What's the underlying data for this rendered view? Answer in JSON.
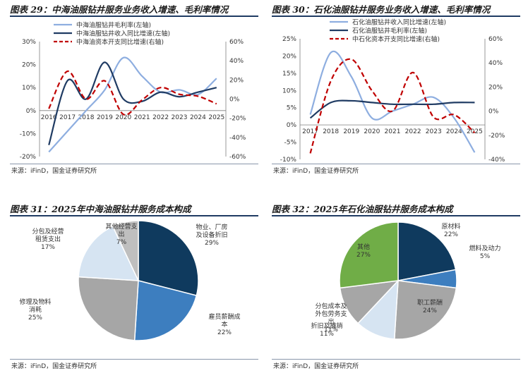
{
  "colors": {
    "light_blue": "#8eaee0",
    "dark_navy": "#1f3b63",
    "red": "#c00000",
    "pie_dark": "#0f3a5e",
    "pie_mid": "#3d7ebf",
    "pie_gray": "#a6a6a6",
    "pie_light": "#d6e4f2",
    "pie_green": "#70ad47",
    "axis": "#7f7f7f"
  },
  "fig29": {
    "title": "图表 29：中海油服钻井服务业务收入增速、毛利率情况",
    "source": "来源：iFinD，国金证券研究所",
    "chart_data": {
      "type": "line",
      "x": [
        "2016",
        "2017",
        "2018",
        "2019",
        "2020",
        "2021",
        "2022",
        "2023",
        "2024",
        "2025"
      ],
      "x_tick_labels": [
        "2016",
        "2017",
        "2018",
        "2019",
        "2020",
        "2021",
        "2022",
        "2023",
        "2024",
        "2025"
      ],
      "left_ylim": [
        -20,
        30
      ],
      "left_ticks": [
        "30%",
        "20%",
        "10%",
        "0%",
        "-10%",
        "-20%"
      ],
      "left_tick_values": [
        30,
        20,
        10,
        0,
        -10,
        -20
      ],
      "right_ylim": [
        -60,
        60
      ],
      "right_ticks": [
        "60%",
        "40%",
        "20%",
        "0%",
        "-20%",
        "-40%",
        "-60%"
      ],
      "right_tick_values": [
        60,
        40,
        20,
        0,
        -20,
        -40,
        -60
      ],
      "series": [
        {
          "name": "中海油服钻井毛利率(左轴)",
          "axis": "left",
          "style": "solid",
          "color": "#8eaee0",
          "values": [
            -18,
            -9,
            0,
            9,
            23,
            15,
            8,
            9,
            7,
            14
          ]
        },
        {
          "name": "中海油服钻井收入同比增速(左轴)",
          "axis": "left",
          "style": "solid",
          "color": "#1f3b63",
          "values": [
            -15,
            13,
            5,
            21,
            5,
            4,
            8,
            6,
            8,
            10
          ]
        },
        {
          "name": "中海油资本开支同比增速(右轴)",
          "axis": "right",
          "style": "dashed",
          "color": "#c00000",
          "values": [
            -10,
            29,
            0,
            19,
            -16,
            -1,
            12,
            5,
            3,
            -5
          ]
        }
      ]
    }
  },
  "fig30": {
    "title": "图表 30：石化油服钻井服务业务收入增速、毛利率情况",
    "source": "来源：iFinD，国金证券研究所",
    "chart_data": {
      "type": "line",
      "x": [
        "2017",
        "2018",
        "2019",
        "2020",
        "2021",
        "2022",
        "2023",
        "2024",
        "2025"
      ],
      "x_tick_labels": [
        "2017",
        "2018",
        "2019",
        "2020",
        "2021",
        "2022",
        "2023",
        "2024",
        "2025"
      ],
      "left_ylim": [
        -10,
        25
      ],
      "left_ticks": [
        "25%",
        "20%",
        "15%",
        "10%",
        "5%",
        "0%",
        "-5%",
        "-10%"
      ],
      "left_tick_values": [
        25,
        20,
        15,
        10,
        5,
        0,
        -5,
        -10
      ],
      "right_ylim": [
        -40,
        60
      ],
      "right_ticks": [
        "60%",
        "40%",
        "20%",
        "0%",
        "-20%",
        "-40%"
      ],
      "right_tick_values": [
        60,
        40,
        20,
        0,
        -20,
        -40
      ],
      "series": [
        {
          "name": "石化油服钻井收入同比增速(左轴)",
          "axis": "left",
          "style": "solid",
          "color": "#8eaee0",
          "values": [
            3,
            21,
            14,
            2,
            4,
            6,
            8,
            2,
            -8
          ]
        },
        {
          "name": "石化油服钻井毛利率(左轴)",
          "axis": "left",
          "style": "solid",
          "color": "#1f3b63",
          "values": [
            2,
            6.5,
            7,
            6.5,
            6,
            6,
            6,
            6.5,
            6.5
          ]
        },
        {
          "name": "中石化资本开支同比增速(右轴)",
          "axis": "right",
          "style": "dashed",
          "color": "#c00000",
          "values": [
            -35,
            25,
            43,
            17,
            0,
            32,
            -5,
            -3,
            -18
          ]
        }
      ]
    }
  },
  "fig31": {
    "title": "图表 31：2025年中海油服钻井服务成本构成",
    "source": "来源：iFinD，国金证券研究所",
    "chart_data": {
      "type": "pie",
      "slices": [
        {
          "label": "物业、厂房及设备折旧",
          "value": 29,
          "text": "29%",
          "color": "#0f3a5e"
        },
        {
          "label": "雇员薪酬成本",
          "value": 22,
          "text": "22%",
          "color": "#3d7ebf"
        },
        {
          "label": "修理及物料消耗",
          "value": 25,
          "text": "25%",
          "color": "#a6a6a6"
        },
        {
          "label": "分包及经营租赁支出",
          "value": 17,
          "text": "17%",
          "color": "#d6e4f2"
        },
        {
          "label": "其他经营支出",
          "value": 7,
          "text": "7%",
          "color": "#bfbfbf"
        }
      ]
    }
  },
  "fig32": {
    "title": "图表 32：2025年石化油服钻井服务成本构成",
    "source": "来源：iFinD，国金证券研究所",
    "chart_data": {
      "type": "pie",
      "slices": [
        {
          "label": "原材料",
          "value": 22,
          "text": "22%",
          "color": "#0f3a5e"
        },
        {
          "label": "燃料及动力",
          "value": 5,
          "text": "5%",
          "color": "#3d7ebf"
        },
        {
          "label": "职工薪酬",
          "value": 24,
          "text": "24%",
          "color": "#a6a6a6"
        },
        {
          "label": "折旧及摊销",
          "value": 11,
          "text": "11%",
          "color": "#d6e4f2"
        },
        {
          "label": "分包成本及外包劳务支出",
          "value": 11,
          "text": "11%",
          "color": "#a6a6a6"
        },
        {
          "label": "其他",
          "value": 27,
          "text": "27%",
          "color": "#70ad47"
        }
      ]
    }
  }
}
